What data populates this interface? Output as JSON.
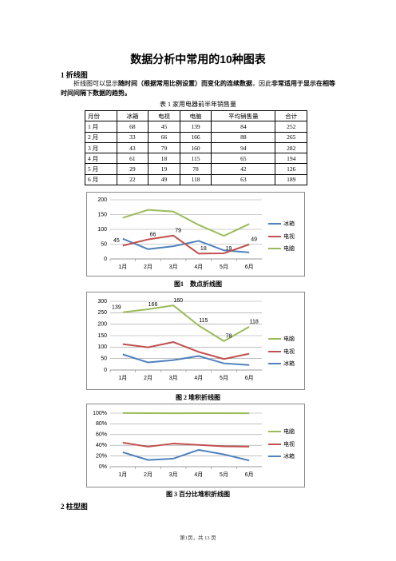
{
  "title": "数据分析中常用的10种图表",
  "section1": "1 折线图",
  "paragraph": [
    "折线图可以显示",
    "随时间（根据常用比例设置）而变化的连续数据",
    "，因此",
    "非常适用于显示在相等时间间隔下数据的趋势。"
  ],
  "table": {
    "caption": "表 1 家用电器前半年销售量",
    "header": [
      "月份",
      "冰箱",
      "电视",
      "电脑",
      "平均销售量",
      "合计"
    ],
    "rows": [
      [
        "1 月",
        68,
        45,
        139,
        84,
        252
      ],
      [
        "2 月",
        33,
        66,
        166,
        88,
        265
      ],
      [
        "3 月",
        43,
        79,
        160,
        94,
        282
      ],
      [
        "4 月",
        61,
        18,
        115,
        65,
        194
      ],
      [
        "5 月",
        29,
        19,
        78,
        42,
        126
      ],
      [
        "6 月",
        22,
        49,
        118,
        63,
        189
      ]
    ]
  },
  "chart_data": [
    {
      "type": "line",
      "caption": "图1　数点折线图",
      "categories": [
        "1月",
        "2月",
        "3月",
        "4月",
        "5月",
        "6月"
      ],
      "ylim": [
        0,
        200
      ],
      "yticks": [
        0,
        50,
        100,
        150,
        200
      ],
      "grid": true,
      "series": [
        {
          "name": "冰箱",
          "color": "#4f81bd",
          "values": [
            68,
            33,
            43,
            61,
            29,
            22
          ]
        },
        {
          "name": "电视",
          "color": "#c0504d",
          "values": [
            45,
            66,
            79,
            18,
            19,
            49
          ],
          "data_labels": true
        },
        {
          "name": "电脑",
          "color": "#9bbb59",
          "values": [
            139,
            166,
            160,
            115,
            78,
            118
          ]
        }
      ]
    },
    {
      "type": "stacked_line",
      "caption": "图 2 堆积折线图",
      "categories": [
        "1月",
        "2月",
        "3月",
        "4月",
        "5月",
        "6月"
      ],
      "ylim": [
        0,
        300
      ],
      "yticks": [
        0,
        50,
        100,
        150,
        200,
        250,
        300
      ],
      "grid": true,
      "series": [
        {
          "name": "冰箱",
          "color": "#4f81bd",
          "values": [
            68,
            33,
            43,
            61,
            29,
            22
          ]
        },
        {
          "name": "电视",
          "color": "#c0504d",
          "values": [
            45,
            66,
            79,
            18,
            19,
            49
          ]
        },
        {
          "name": "电脑",
          "color": "#9bbb59",
          "values": [
            139,
            166,
            160,
            115,
            78,
            118
          ],
          "data_labels": true
        }
      ]
    },
    {
      "type": "percent_stacked_line",
      "caption": "图 3 百分比堆积折线图",
      "categories": [
        "1月",
        "2月",
        "3月",
        "4月",
        "5月",
        "6月"
      ],
      "ylim": [
        0,
        100
      ],
      "yticks": [
        {
          "value": 0,
          "label": "0%"
        },
        {
          "value": 20,
          "label": "20%"
        },
        {
          "value": 40,
          "label": "40%"
        },
        {
          "value": 60,
          "label": "60%"
        },
        {
          "value": 80,
          "label": "80%"
        },
        {
          "value": 100,
          "label": "100%"
        }
      ],
      "grid": true,
      "series": [
        {
          "name": "冰箱",
          "color": "#4f81bd",
          "values": [
            27.0,
            12.5,
            15.2,
            31.4,
            23.0,
            11.6
          ]
        },
        {
          "name": "电视",
          "color": "#c0504d",
          "values": [
            17.9,
            24.9,
            28.0,
            9.3,
            15.1,
            25.9
          ]
        },
        {
          "name": "电脑",
          "color": "#9bbb59",
          "values": [
            55.2,
            62.6,
            56.7,
            59.3,
            61.9,
            62.4
          ]
        }
      ]
    }
  ],
  "section2": "2 柱型图",
  "footer": "第1页，共 13 页"
}
